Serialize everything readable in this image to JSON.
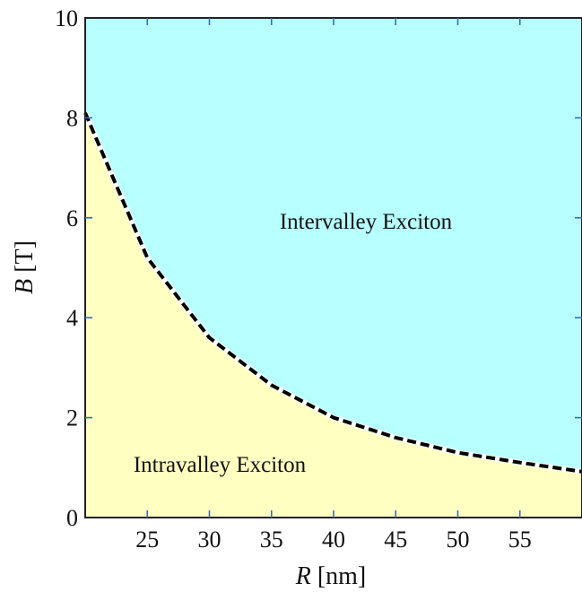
{
  "chart_data": {
    "type": "area",
    "title": "",
    "xlabel": {
      "var": "R",
      "unit": " [nm]"
    },
    "ylabel": {
      "var": "B",
      "unit": " [T]"
    },
    "xlim": [
      20,
      60
    ],
    "ylim": [
      0,
      10
    ],
    "xticks": [
      25,
      30,
      35,
      40,
      45,
      50,
      55
    ],
    "yticks": [
      0,
      2,
      4,
      6,
      8,
      10
    ],
    "grid": false,
    "boundary": {
      "style": "dashed",
      "x": [
        20,
        25,
        30,
        35,
        40,
        45,
        50,
        55,
        60
      ],
      "y": [
        8.1,
        5.2,
        3.6,
        2.65,
        2.0,
        1.6,
        1.3,
        1.1,
        0.92
      ]
    },
    "regions": [
      {
        "label": "Intervalley Exciton",
        "side": "above",
        "color": "#b8ffff"
      },
      {
        "label": "Intravalley Exciton",
        "side": "below",
        "color": "#ffffc2"
      }
    ]
  }
}
